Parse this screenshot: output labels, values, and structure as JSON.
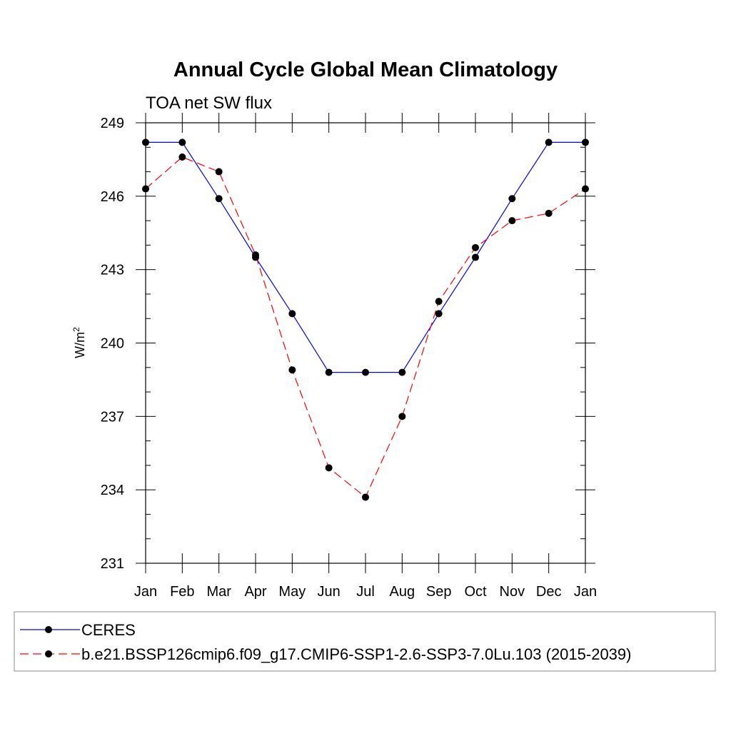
{
  "chart_data": {
    "type": "line",
    "title": "Annual Cycle Global Mean Climatology",
    "subtitle": "TOA net SW flux",
    "xlabel": "",
    "ylabel": "W/m",
    "ylabel_sup": "2",
    "categories": [
      "Jan",
      "Feb",
      "Mar",
      "Apr",
      "May",
      "Jun",
      "Jul",
      "Aug",
      "Sep",
      "Oct",
      "Nov",
      "Dec",
      "Jan"
    ],
    "yticks": [
      "231",
      "234",
      "237",
      "240",
      "243",
      "246",
      "249"
    ],
    "ylim": [
      231,
      249
    ],
    "grid": false,
    "legend_position": "bottom",
    "series": [
      {
        "name": "CERES",
        "color": "#0000ff",
        "style": "solid",
        "values": [
          248.2,
          248.2,
          245.9,
          243.5,
          241.2,
          238.8,
          238.8,
          238.8,
          241.2,
          243.5,
          245.9,
          248.2,
          248.2
        ]
      },
      {
        "name": "b.e21.BSSP126cmip6.f09_g17.CMIP6-SSP1-2.6-SSP3-7.0Lu.103 (2015-2039)",
        "color": "#ff0000",
        "style": "dashed",
        "values": [
          246.3,
          247.6,
          247.0,
          243.6,
          238.9,
          234.9,
          233.7,
          237.0,
          241.7,
          243.9,
          245.0,
          245.3,
          246.3
        ]
      }
    ]
  }
}
